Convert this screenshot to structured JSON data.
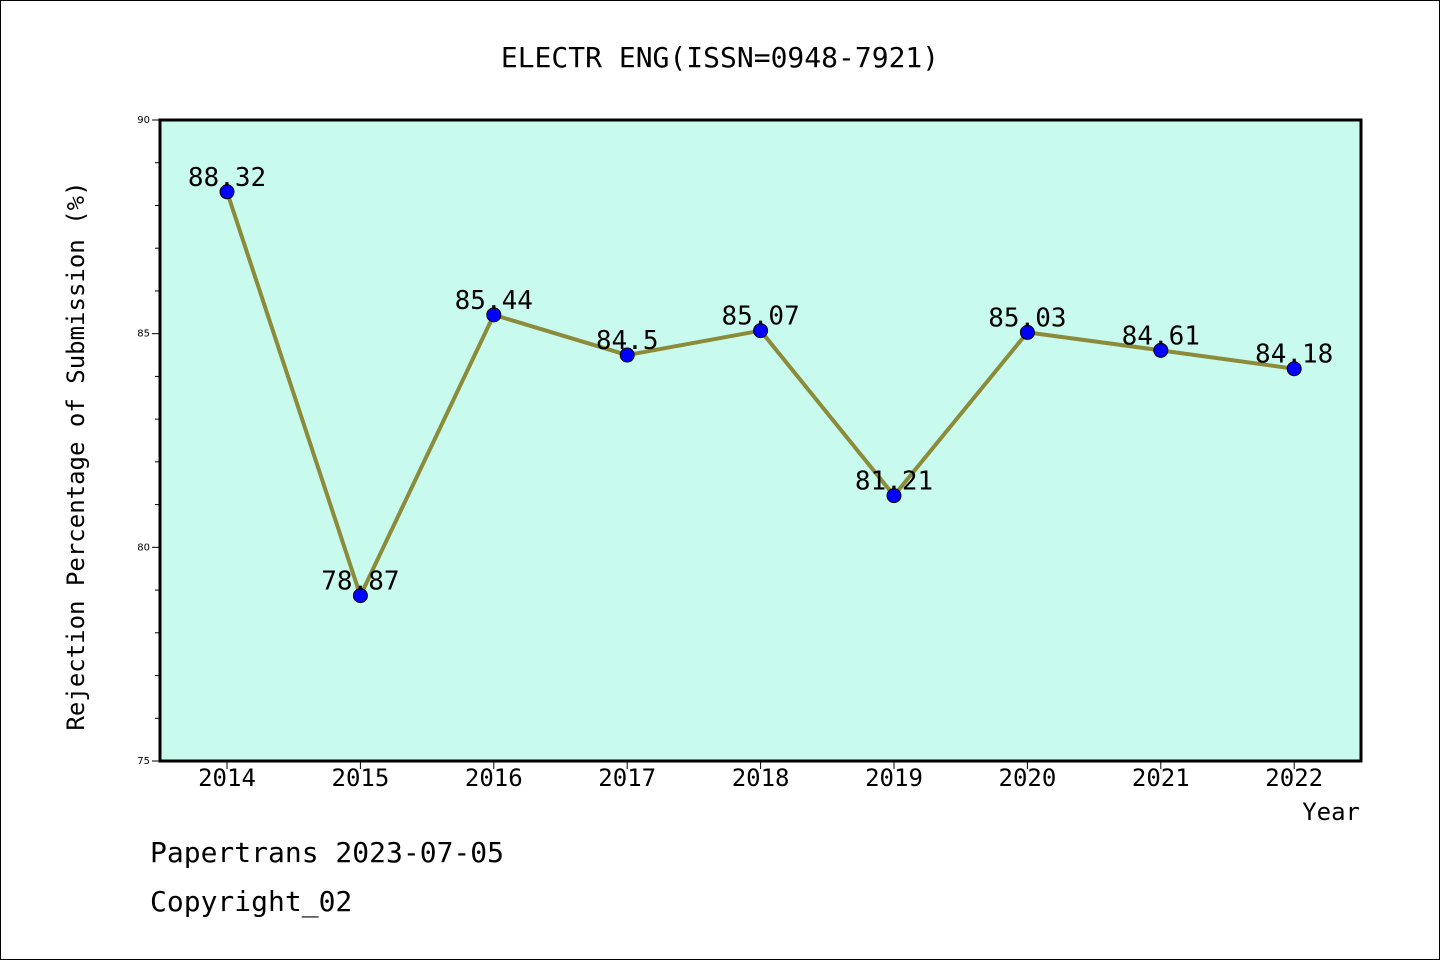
{
  "chart_data": {
    "type": "line",
    "title": "ELECTR ENG(ISSN=0948-7921)",
    "xlabel": "Year",
    "ylabel": "Rejection Percentage of Submission (%)",
    "categories": [
      "2014",
      "2015",
      "2016",
      "2017",
      "2018",
      "2019",
      "2020",
      "2021",
      "2022"
    ],
    "values": [
      88.32,
      78.87,
      85.44,
      84.5,
      85.07,
      81.21,
      85.03,
      84.61,
      84.18
    ],
    "data_labels": [
      "88.32",
      "78.87",
      "85.44",
      "84.5",
      "85.07",
      "81.21",
      "85.03",
      "84.61",
      "84.18"
    ],
    "ylim": [
      75,
      90
    ],
    "yticks": [
      75,
      80,
      85,
      90
    ],
    "grid": false,
    "legend": "none",
    "colors": {
      "plot_background": "#c8fbee",
      "line": "#8b8b3a",
      "marker": "#0000ff",
      "axes": "#000000"
    }
  },
  "footer": {
    "date_line": "Papertrans 2023-07-05",
    "copyright_line": "Copyright_02"
  }
}
